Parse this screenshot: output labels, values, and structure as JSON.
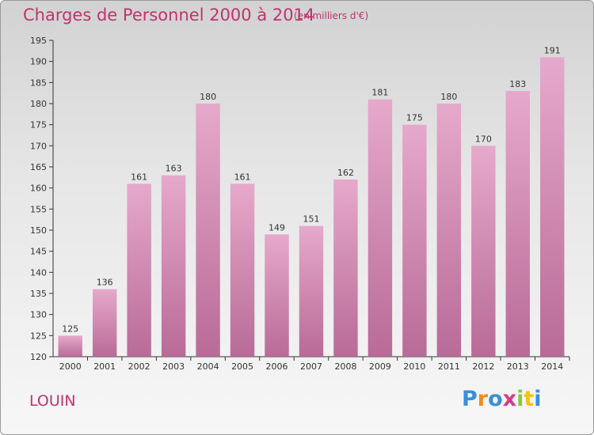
{
  "header": {
    "title": "Charges de Personnel 2000 à 2014",
    "subtitle": "(en milliers d'€)"
  },
  "footer": {
    "place": "LOUIN",
    "logo_text": "Proxiti",
    "logo_colors": [
      "#3a8fd9",
      "#f28c1b",
      "#3a8fd9",
      "#d23a8a",
      "#8cc63f",
      "#f2c40f",
      "#3a8fd9"
    ]
  },
  "chart_data": {
    "type": "bar",
    "categories": [
      "2000",
      "2001",
      "2002",
      "2003",
      "2004",
      "2005",
      "2006",
      "2007",
      "2008",
      "2009",
      "2010",
      "2011",
      "2012",
      "2013",
      "2014"
    ],
    "values": [
      125,
      136,
      161,
      163,
      180,
      161,
      149,
      151,
      162,
      181,
      175,
      180,
      170,
      183,
      191
    ],
    "ylim": [
      120,
      195
    ],
    "yticks": [
      120,
      125,
      130,
      135,
      140,
      145,
      150,
      155,
      160,
      165,
      170,
      175,
      180,
      185,
      190,
      195
    ],
    "grid": false,
    "bar_color": "#d584b2",
    "bar_color_top": "#e6a9cb",
    "bar_color_bottom": "#b86b97"
  }
}
